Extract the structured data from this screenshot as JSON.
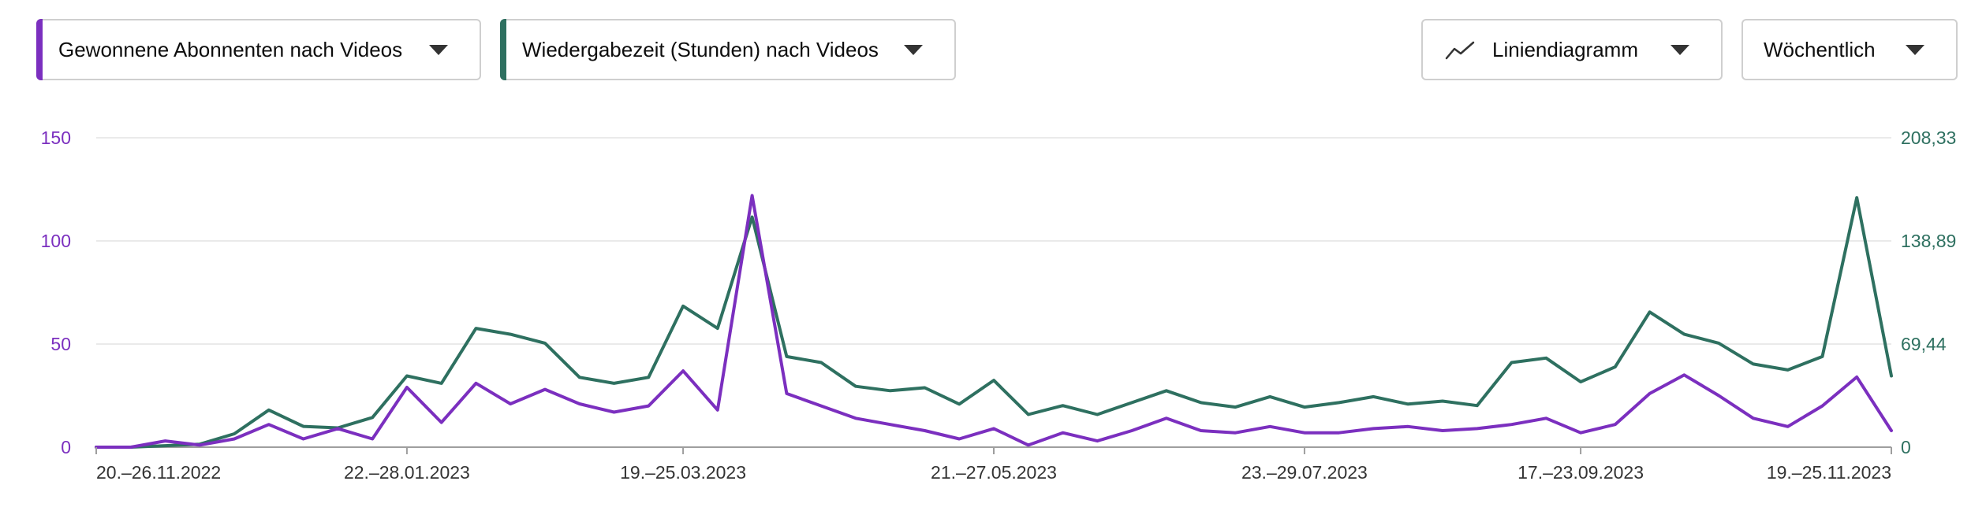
{
  "controls": {
    "metric1": {
      "label": "Gewonnene Abonnenten nach Videos",
      "color": "#7b2fbf",
      "icon": "chevron-down-icon"
    },
    "metric2": {
      "label": "Wiedergabezeit (Stunden) nach Videos",
      "color": "#2e7060",
      "icon": "chevron-down-icon"
    },
    "chart_type": {
      "label": "Liniendiagramm",
      "icon": "line-chart-icon"
    },
    "period": {
      "label": "Wöchentlich",
      "icon": "chevron-down-icon"
    }
  },
  "chart_data": {
    "type": "line",
    "grid": true,
    "x_tick_labels": [
      "20.–26.11.2022",
      "22.–28.01.2023",
      "19.–25.03.2023",
      "21.–27.05.2023",
      "23.–29.07.2023",
      "17.–23.09.2023",
      "19.–25.11.2023"
    ],
    "x_tick_indices": [
      0,
      9,
      17,
      26,
      35,
      43,
      52
    ],
    "y_left": {
      "ticks": [
        "0",
        "50",
        "100",
        "150"
      ],
      "ylim": [
        0,
        150
      ],
      "color": "#7b2fbf"
    },
    "y_right": {
      "ticks": [
        "0",
        "69,44",
        "138,89",
        "208,33"
      ],
      "ylim": [
        0,
        208.33
      ],
      "color": "#2e7060"
    },
    "series": [
      {
        "axis": "left",
        "color": "#7b2fbf",
        "values": [
          0,
          0,
          3,
          1,
          4,
          11,
          4,
          9,
          4,
          29,
          12,
          31,
          21,
          28,
          21,
          17,
          20,
          37,
          18,
          122,
          26,
          20,
          14,
          11,
          8,
          4,
          9,
          1,
          7,
          3,
          8,
          14,
          8,
          7,
          10,
          7,
          7,
          9,
          10,
          8,
          9,
          11,
          14,
          7,
          11,
          26,
          35,
          25,
          14,
          10,
          20,
          34,
          8
        ]
      },
      {
        "axis": "right",
        "color": "#2e7060",
        "values": [
          0,
          0,
          1,
          2,
          9,
          25,
          14,
          13,
          20,
          48,
          43,
          80,
          76,
          70,
          47,
          43,
          47,
          95,
          80,
          155,
          61,
          57,
          41,
          38,
          40,
          29,
          45,
          22,
          28,
          22,
          30,
          38,
          30,
          27,
          34,
          27,
          30,
          34,
          29,
          31,
          28,
          57,
          60,
          44,
          54,
          91,
          76,
          70,
          56,
          52,
          61,
          168,
          48
        ]
      }
    ]
  }
}
